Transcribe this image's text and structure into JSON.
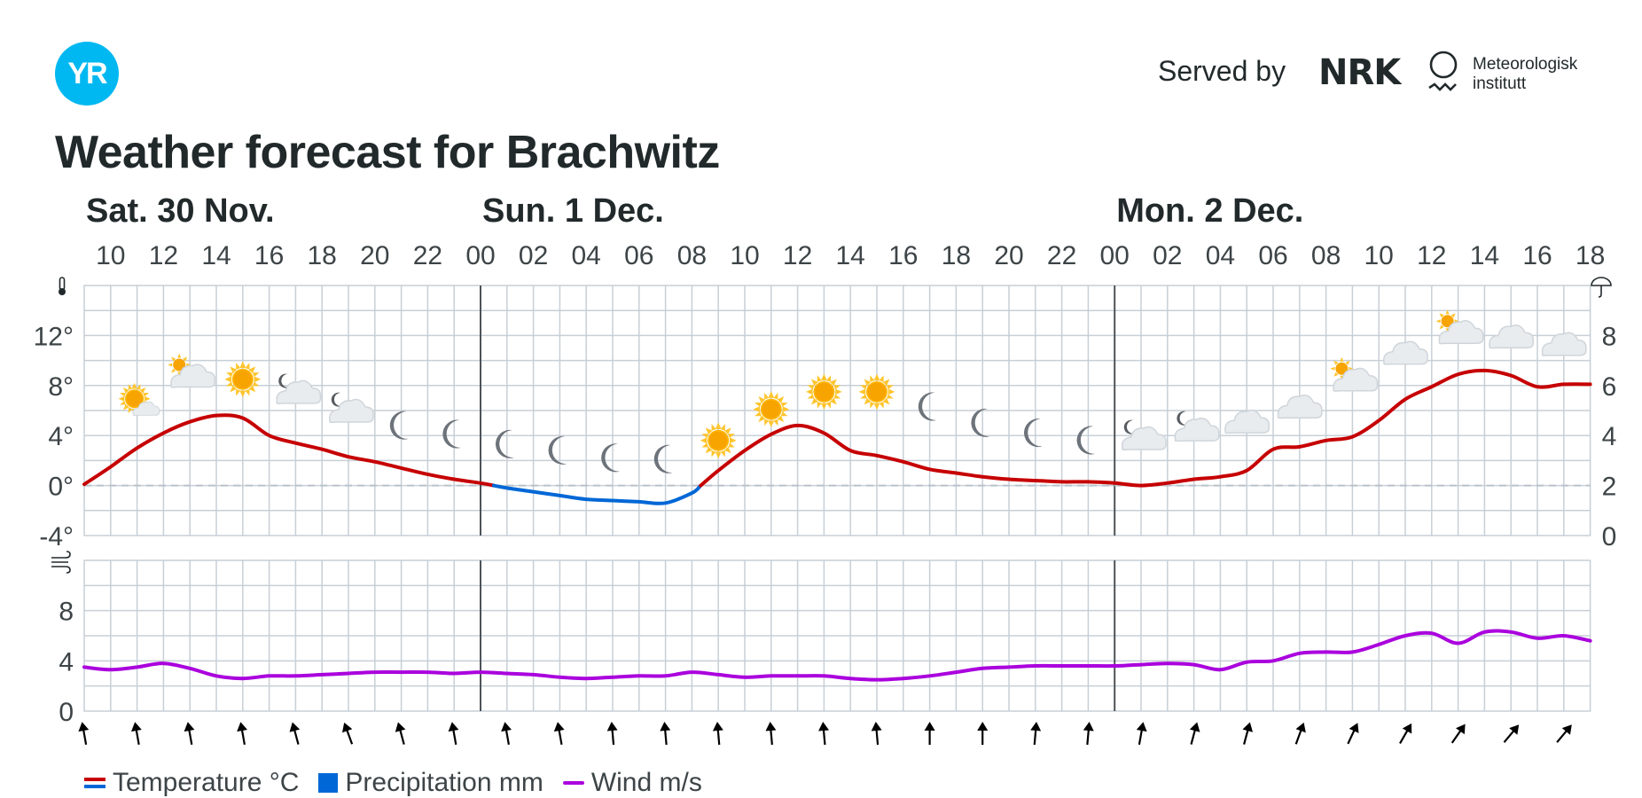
{
  "header": {
    "logo_text": "YR",
    "served_by": "Served by",
    "nrk_logo": "NRK",
    "met_name_line1": "Meteorologisk",
    "met_name_line2": "institutt",
    "title": "Weather forecast for Brachwitz"
  },
  "colors": {
    "temperature": "#c60000",
    "temperature_below_zero": "#0067d6",
    "precipitation": "#0067d6",
    "wind": "#aa00dd",
    "grid": "#c7cfd6",
    "day_divider": "#4d5358",
    "zero_line": "#b8c2cb"
  },
  "legend": [
    {
      "label": "Temperature °C",
      "type": "temperature"
    },
    {
      "label": "Precipitation mm",
      "type": "precipitation"
    },
    {
      "label": "Wind m/s",
      "type": "wind"
    }
  ],
  "chart_data": {
    "type": "line",
    "start_hour": "Sat 30 Nov 09:00",
    "day_labels": [
      {
        "label": "Sat. 30 Nov.",
        "hour_index": 0
      },
      {
        "label": "Sun. 1 Dec.",
        "hour_index": 15
      },
      {
        "label": "Mon. 2 Dec.",
        "hour_index": 39
      }
    ],
    "hour_ticks": [
      "10",
      "12",
      "14",
      "16",
      "18",
      "20",
      "22",
      "00",
      "02",
      "04",
      "06",
      "08",
      "10",
      "12",
      "14",
      "16",
      "18",
      "20",
      "22",
      "00",
      "02",
      "04",
      "06",
      "08",
      "10",
      "12",
      "14",
      "16",
      "18"
    ],
    "temperature_axis": {
      "ticks": [
        "12°",
        "8°",
        "4°",
        "0°",
        "-4°"
      ],
      "ylim": [
        -4,
        16
      ]
    },
    "precipitation_axis": {
      "ticks": [
        "8",
        "6",
        "4",
        "2",
        "0"
      ],
      "ylim": [
        0,
        10
      ]
    },
    "wind_axis": {
      "ticks": [
        "8",
        "4",
        "0"
      ],
      "ylim": [
        0,
        12
      ]
    },
    "temperature": {
      "name": "Temperature °C",
      "x_hours": [
        0,
        1,
        2,
        3,
        4,
        5,
        6,
        7,
        8,
        9,
        10,
        11,
        12,
        13,
        14,
        15,
        16,
        17,
        18,
        19,
        20,
        21,
        22,
        23,
        24,
        25,
        26,
        27,
        28,
        29,
        30,
        31,
        32,
        33,
        34,
        35,
        36,
        37,
        38,
        39,
        40,
        41,
        42,
        43,
        44,
        45,
        46,
        47,
        48,
        49,
        50,
        51,
        52,
        53,
        54,
        55,
        56,
        57
      ],
      "values": [
        0.1,
        1.5,
        3.0,
        4.2,
        5.1,
        5.6,
        5.4,
        4.0,
        3.4,
        2.9,
        2.3,
        1.9,
        1.4,
        0.9,
        0.5,
        0.2,
        -0.2,
        -0.5,
        -0.8,
        -1.1,
        -1.2,
        -1.3,
        -1.4,
        -0.6,
        1.2,
        2.8,
        4.1,
        4.8,
        4.2,
        2.8,
        2.4,
        1.9,
        1.3,
        1.0,
        0.7,
        0.5,
        0.4,
        0.3,
        0.3,
        0.2,
        0.0,
        0.2,
        0.5,
        0.7,
        1.2,
        2.9,
        3.1,
        3.6,
        3.9,
        5.2,
        6.9,
        7.9,
        8.9,
        9.2,
        8.8,
        7.9,
        8.1,
        8.1
      ]
    },
    "precipitation": {
      "name": "Precipitation mm",
      "values": []
    },
    "wind": {
      "name": "Wind m/s",
      "x_hours": [
        0,
        1,
        2,
        3,
        4,
        5,
        6,
        7,
        8,
        9,
        10,
        11,
        12,
        13,
        14,
        15,
        16,
        17,
        18,
        19,
        20,
        21,
        22,
        23,
        24,
        25,
        26,
        27,
        28,
        29,
        30,
        31,
        32,
        33,
        34,
        35,
        36,
        37,
        38,
        39,
        40,
        41,
        42,
        43,
        44,
        45,
        46,
        47,
        48,
        49,
        50,
        51,
        52,
        53,
        54,
        55,
        56,
        57
      ],
      "values": [
        3.5,
        3.3,
        3.5,
        3.8,
        3.4,
        2.8,
        2.6,
        2.8,
        2.8,
        2.9,
        3.0,
        3.1,
        3.1,
        3.1,
        3.0,
        3.1,
        3.0,
        2.9,
        2.7,
        2.6,
        2.7,
        2.8,
        2.8,
        3.1,
        2.9,
        2.7,
        2.8,
        2.8,
        2.8,
        2.6,
        2.5,
        2.6,
        2.8,
        3.1,
        3.4,
        3.5,
        3.6,
        3.6,
        3.6,
        3.6,
        3.7,
        3.8,
        3.7,
        3.3,
        3.9,
        4.0,
        4.6,
        4.7,
        4.7,
        5.3,
        6.0,
        6.2,
        5.4,
        6.3,
        6.3,
        5.8,
        6.0,
        5.6
      ]
    },
    "weather_symbols": [
      {
        "hour": 2,
        "temp": 6.8,
        "icon": "partly-cloudy-day-icon"
      },
      {
        "hour": 4,
        "temp": 8.8,
        "icon": "fair-day-icon"
      },
      {
        "hour": 6,
        "temp": 8.5,
        "icon": "clear-sky-day-icon"
      },
      {
        "hour": 8,
        "temp": 7.5,
        "icon": "partly-cloudy-night-icon"
      },
      {
        "hour": 10,
        "temp": 6.0,
        "icon": "partly-cloudy-night-icon"
      },
      {
        "hour": 12,
        "temp": 4.8,
        "icon": "clear-sky-night-icon"
      },
      {
        "hour": 14,
        "temp": 4.1,
        "icon": "clear-sky-night-icon"
      },
      {
        "hour": 16,
        "temp": 3.3,
        "icon": "clear-sky-night-icon"
      },
      {
        "hour": 18,
        "temp": 2.8,
        "icon": "clear-sky-night-icon"
      },
      {
        "hour": 20,
        "temp": 2.2,
        "icon": "clear-sky-night-icon"
      },
      {
        "hour": 22,
        "temp": 2.1,
        "icon": "clear-sky-night-icon"
      },
      {
        "hour": 24,
        "temp": 3.6,
        "icon": "clear-sky-day-icon"
      },
      {
        "hour": 26,
        "temp": 6.1,
        "icon": "clear-sky-day-icon"
      },
      {
        "hour": 28,
        "temp": 7.5,
        "icon": "clear-sky-day-icon"
      },
      {
        "hour": 30,
        "temp": 7.5,
        "icon": "clear-sky-day-icon"
      },
      {
        "hour": 32,
        "temp": 6.3,
        "icon": "clear-sky-night-icon"
      },
      {
        "hour": 34,
        "temp": 5.0,
        "icon": "clear-sky-night-icon"
      },
      {
        "hour": 36,
        "temp": 4.2,
        "icon": "clear-sky-night-icon"
      },
      {
        "hour": 38,
        "temp": 3.6,
        "icon": "clear-sky-night-icon"
      },
      {
        "hour": 40,
        "temp": 3.8,
        "icon": "partly-cloudy-night-icon"
      },
      {
        "hour": 42,
        "temp": 4.5,
        "icon": "partly-cloudy-night-icon"
      },
      {
        "hour": 44,
        "temp": 5.0,
        "icon": "cloudy-icon"
      },
      {
        "hour": 46,
        "temp": 6.2,
        "icon": "cloudy-icon"
      },
      {
        "hour": 48,
        "temp": 8.5,
        "icon": "partly-cloudy-day-icon"
      },
      {
        "hour": 50,
        "temp": 10.5,
        "icon": "cloudy-icon"
      },
      {
        "hour": 52,
        "temp": 12.3,
        "icon": "partly-cloudy-day-icon"
      },
      {
        "hour": 54,
        "temp": 11.8,
        "icon": "cloudy-icon"
      },
      {
        "hour": 56,
        "temp": 11.2,
        "icon": "cloudy-icon"
      }
    ],
    "wind_direction_deg": [
      350,
      350,
      350,
      350,
      345,
      340,
      345,
      350,
      350,
      350,
      355,
      355,
      355,
      355,
      355,
      355,
      0,
      0,
      5,
      5,
      10,
      15,
      15,
      20,
      25,
      30,
      35,
      40,
      40
    ]
  }
}
